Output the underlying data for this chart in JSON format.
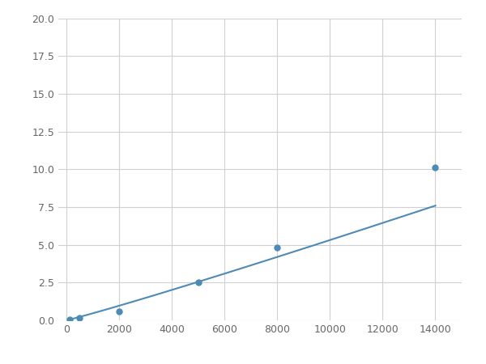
{
  "x_data": [
    125,
    500,
    2000,
    5000,
    8000,
    14000
  ],
  "y_data": [
    0.08,
    0.15,
    0.6,
    2.5,
    4.8,
    10.1
  ],
  "line_color": "#4d8ab5",
  "marker_color": "#4d8ab5",
  "xlim": [
    -300,
    15000
  ],
  "ylim": [
    0,
    20
  ],
  "xticks": [
    0,
    2000,
    4000,
    6000,
    8000,
    10000,
    12000,
    14000
  ],
  "yticks": [
    0.0,
    2.5,
    5.0,
    7.5,
    10.0,
    12.5,
    15.0,
    17.5,
    20.0
  ],
  "grid_color": "#d0d0d0",
  "background_color": "#ffffff",
  "marker_size": 5,
  "line_width": 1.5
}
